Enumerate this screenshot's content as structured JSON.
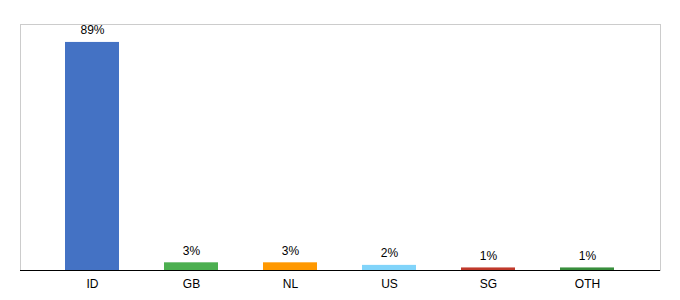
{
  "chart_data": {
    "type": "bar",
    "categories": [
      "ID",
      "GB",
      "NL",
      "US",
      "SG",
      "OTH"
    ],
    "values": [
      89,
      3,
      3,
      2,
      1,
      1
    ],
    "value_labels": [
      "89%",
      "3%",
      "3%",
      "2%",
      "1%",
      "1%"
    ],
    "colors": [
      "#4472c4",
      "#4caf50",
      "#ff9800",
      "#81d4fa",
      "#c0392b",
      "#388e3c"
    ],
    "ylim": [
      0,
      96
    ],
    "data_labels": true,
    "tick_labels": "x",
    "grid": false
  }
}
